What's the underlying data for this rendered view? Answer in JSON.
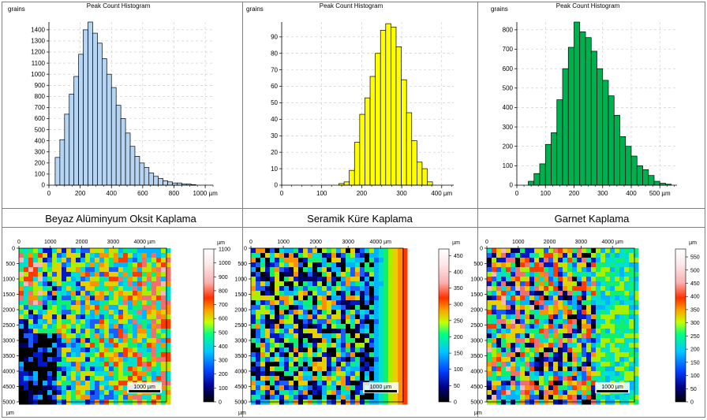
{
  "chart_data": [
    {
      "type": "bar",
      "title": "Peak Count Histogram",
      "ylabel": "grains",
      "x_unit": "µm",
      "bar_color": "#b7d5f2",
      "xlim": [
        0,
        1050
      ],
      "ylim": [
        0,
        1470
      ],
      "xticks": [
        0,
        200,
        400,
        600,
        800,
        1000
      ],
      "yticks": [
        0,
        100,
        200,
        300,
        400,
        500,
        600,
        700,
        800,
        900,
        1000,
        1100,
        1200,
        1300,
        1400
      ],
      "bin_start": 40,
      "bin_width": 30,
      "values": [
        250,
        410,
        640,
        820,
        980,
        1180,
        1400,
        1470,
        1370,
        1280,
        1140,
        1000,
        880,
        720,
        600,
        470,
        350,
        260,
        200,
        160,
        110,
        80,
        60,
        40,
        30,
        20,
        20,
        10,
        10,
        5,
        0
      ]
    },
    {
      "type": "bar",
      "title": "Peak Count Histogram",
      "ylabel": "grains",
      "x_unit": "µm",
      "bar_color": "#ffff00",
      "xlim": [
        0,
        430
      ],
      "ylim": [
        0,
        99
      ],
      "xticks": [
        0,
        100,
        200,
        300,
        400
      ],
      "yticks": [
        0,
        10,
        20,
        30,
        40,
        50,
        60,
        70,
        80,
        90
      ],
      "bin_start": 0,
      "bin_width": 13,
      "values": [
        0,
        0,
        0,
        0,
        0,
        0,
        0,
        0,
        0,
        0,
        0,
        1,
        2,
        9,
        26,
        43,
        53,
        66,
        80,
        94,
        98,
        96,
        84,
        64,
        44,
        27,
        14,
        10,
        2,
        0,
        0,
        0,
        0
      ]
    },
    {
      "type": "bar",
      "title": "Peak Count Histogram",
      "ylabel": "grains",
      "x_unit": "µm",
      "bar_color": "#00b050",
      "xlim": [
        0,
        560
      ],
      "ylim": [
        0,
        840
      ],
      "xticks": [
        0,
        100,
        200,
        300,
        400,
        500
      ],
      "yticks": [
        0,
        100,
        200,
        300,
        400,
        500,
        600,
        700,
        800
      ],
      "bin_start": 40,
      "bin_width": 20,
      "values": [
        20,
        60,
        110,
        210,
        270,
        440,
        600,
        710,
        840,
        790,
        760,
        690,
        600,
        540,
        460,
        360,
        250,
        200,
        150,
        100,
        80,
        50,
        20,
        10,
        5,
        0
      ]
    }
  ],
  "captions": [
    "Beyaz Alüminyum Oksit Kaplama",
    "Seramik Küre Kaplama",
    "Garnet Kaplama"
  ],
  "maps": [
    {
      "x_ticks": [
        0,
        1000,
        2000,
        3000,
        4000
      ],
      "x_unit_label": "4000 µm",
      "y_ticks": [
        0,
        500,
        1000,
        1500,
        2000,
        2500,
        3000,
        3500,
        4000,
        4500,
        5000
      ],
      "y_unit": "µm",
      "scale_bar_label": "1000 µm",
      "colorbar_unit": "µm",
      "colorbar_max": 1100,
      "colorbar_ticks": [
        1100,
        1000,
        900,
        800,
        700,
        600,
        500,
        400,
        300,
        200,
        100,
        0
      ]
    },
    {
      "x_ticks": [
        0,
        1000,
        2000,
        3000,
        4000
      ],
      "x_unit_label": "4000 µm",
      "y_ticks": [
        0,
        500,
        1000,
        1500,
        2000,
        2500,
        3000,
        3500,
        4000,
        4500,
        5000
      ],
      "y_unit": "µm",
      "scale_bar_label": "1000 µm",
      "colorbar_unit": "µm",
      "colorbar_max": 470,
      "colorbar_ticks": [
        450,
        400,
        350,
        300,
        250,
        200,
        150,
        100,
        50,
        0
      ]
    },
    {
      "x_ticks": [
        0,
        1000,
        2000,
        3000,
        4000
      ],
      "x_unit_label": "4000 µm",
      "y_ticks": [
        0,
        500,
        1000,
        1500,
        2000,
        2500,
        3000,
        3500,
        4000,
        4500,
        5000
      ],
      "y_unit": "µm",
      "scale_bar_label": "1000 µm",
      "colorbar_unit": "µm",
      "colorbar_max": 580,
      "colorbar_ticks": [
        550,
        500,
        450,
        400,
        350,
        300,
        250,
        200,
        150,
        100,
        50,
        0
      ]
    }
  ]
}
